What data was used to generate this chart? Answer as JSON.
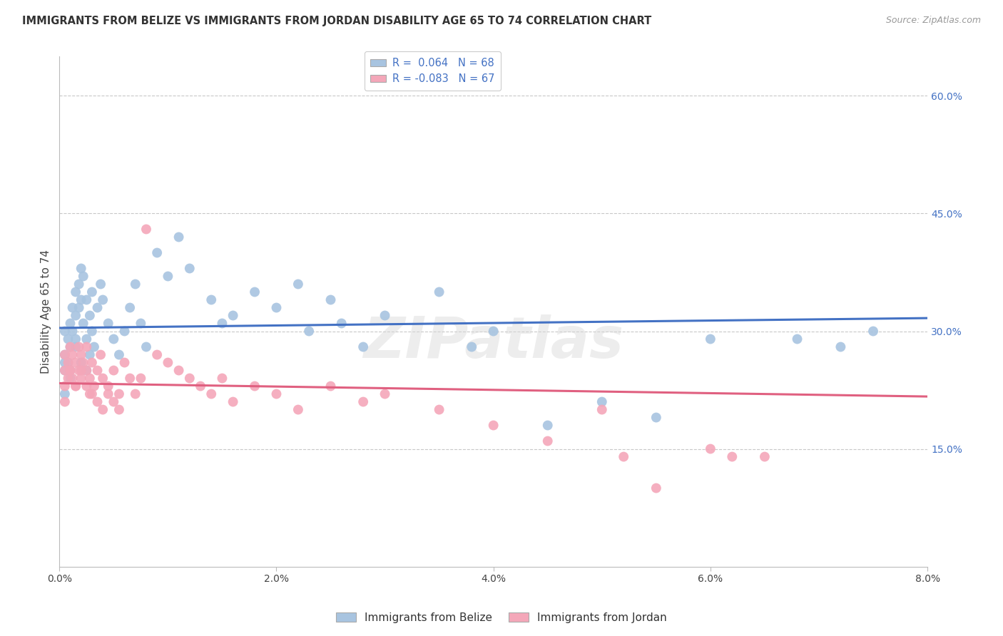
{
  "title": "IMMIGRANTS FROM BELIZE VS IMMIGRANTS FROM JORDAN DISABILITY AGE 65 TO 74 CORRELATION CHART",
  "source": "Source: ZipAtlas.com",
  "ylabel": "Disability Age 65 to 74",
  "xlim": [
    0.0,
    8.0
  ],
  "ylim": [
    0.0,
    65.0
  ],
  "yticks": [
    15.0,
    30.0,
    45.0,
    60.0
  ],
  "xticks": [
    0.0,
    2.0,
    4.0,
    6.0,
    8.0
  ],
  "belize_R": 0.064,
  "belize_N": 68,
  "jordan_R": -0.083,
  "jordan_N": 67,
  "belize_color": "#a8c4e0",
  "jordan_color": "#f4a7b9",
  "belize_line_color": "#4472c4",
  "jordan_line_color": "#e06080",
  "legend_belize_label": "Immigrants from Belize",
  "legend_jordan_label": "Immigrants from Jordan",
  "watermark": "ZIPatlas",
  "background_color": "#ffffff",
  "grid_color": "#c8c8c8",
  "belize_x": [
    0.05,
    0.05,
    0.05,
    0.05,
    0.08,
    0.08,
    0.1,
    0.1,
    0.1,
    0.12,
    0.12,
    0.15,
    0.15,
    0.15,
    0.18,
    0.18,
    0.2,
    0.2,
    0.22,
    0.22,
    0.25,
    0.25,
    0.28,
    0.28,
    0.3,
    0.3,
    0.32,
    0.35,
    0.38,
    0.4,
    0.45,
    0.5,
    0.55,
    0.6,
    0.65,
    0.7,
    0.75,
    0.8,
    0.9,
    1.0,
    1.1,
    1.2,
    1.4,
    1.5,
    1.6,
    1.8,
    2.0,
    2.2,
    2.3,
    2.5,
    2.6,
    2.8,
    3.0,
    3.5,
    3.8,
    4.0,
    4.5,
    5.0,
    5.5,
    6.0,
    6.8,
    7.2,
    7.5,
    0.05,
    0.1,
    0.15,
    0.2,
    0.25
  ],
  "belize_y": [
    27,
    30,
    25,
    22,
    29,
    26,
    31,
    28,
    24,
    33,
    30,
    35,
    32,
    28,
    36,
    33,
    38,
    34,
    37,
    31,
    34,
    29,
    32,
    27,
    35,
    30,
    28,
    33,
    36,
    34,
    31,
    29,
    27,
    30,
    33,
    36,
    31,
    28,
    40,
    37,
    42,
    38,
    34,
    31,
    32,
    35,
    33,
    36,
    30,
    34,
    31,
    28,
    32,
    35,
    28,
    30,
    18,
    21,
    19,
    29,
    29,
    28,
    30,
    26,
    25,
    29,
    26,
    25
  ],
  "jordan_x": [
    0.05,
    0.05,
    0.05,
    0.05,
    0.08,
    0.08,
    0.1,
    0.1,
    0.12,
    0.12,
    0.15,
    0.15,
    0.18,
    0.18,
    0.2,
    0.2,
    0.22,
    0.25,
    0.25,
    0.28,
    0.28,
    0.3,
    0.32,
    0.35,
    0.38,
    0.4,
    0.45,
    0.5,
    0.55,
    0.6,
    0.65,
    0.7,
    0.75,
    0.8,
    0.9,
    1.0,
    1.1,
    1.2,
    1.3,
    1.4,
    1.5,
    1.6,
    1.8,
    2.0,
    2.2,
    2.5,
    2.8,
    3.0,
    3.5,
    4.0,
    4.5,
    5.0,
    5.2,
    5.5,
    6.0,
    6.2,
    6.5,
    0.1,
    0.15,
    0.2,
    0.25,
    0.3,
    0.35,
    0.4,
    0.45,
    0.5,
    0.55
  ],
  "jordan_y": [
    27,
    25,
    23,
    21,
    26,
    24,
    28,
    25,
    27,
    24,
    26,
    23,
    28,
    25,
    27,
    24,
    26,
    28,
    25,
    24,
    22,
    26,
    23,
    25,
    27,
    24,
    23,
    25,
    22,
    26,
    24,
    22,
    24,
    43,
    27,
    26,
    25,
    24,
    23,
    22,
    24,
    21,
    23,
    22,
    20,
    23,
    21,
    22,
    20,
    18,
    16,
    20,
    14,
    10,
    15,
    14,
    14,
    25,
    23,
    25,
    23,
    22,
    21,
    20,
    22,
    21,
    20
  ]
}
